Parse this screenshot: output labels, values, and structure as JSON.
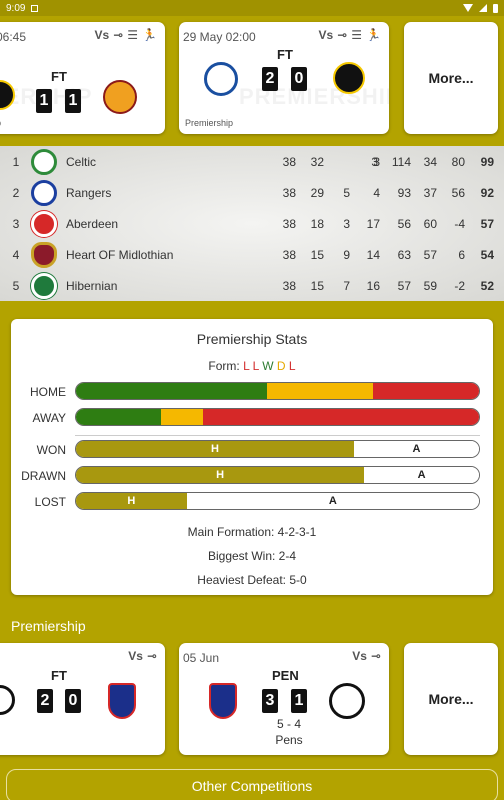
{
  "status_bar": {
    "time": "9:09"
  },
  "top_fixtures": [
    {
      "date": "06:45",
      "vs": "Vs",
      "status": "FT",
      "home_score": "1",
      "away_score": "1",
      "competition": "p",
      "watermark": "PREMIERSHIP"
    },
    {
      "date": "29 May 02:00",
      "vs": "Vs",
      "status": "FT",
      "home_score": "2",
      "away_score": "0",
      "competition": "Premiership",
      "watermark": "PREMIERSHIP"
    }
  ],
  "more_label": "More...",
  "league_table": [
    {
      "pos": "1",
      "team": "Celtic",
      "p": "38",
      "w": "32",
      "d": "3",
      "l": "3",
      "gf": "114",
      "ga": "34",
      "gd": "80",
      "pts": "99"
    },
    {
      "pos": "2",
      "team": "Rangers",
      "p": "38",
      "w": "29",
      "d": "5",
      "l": "4",
      "gf": "93",
      "ga": "37",
      "gd": "56",
      "pts": "92"
    },
    {
      "pos": "3",
      "team": "Aberdeen",
      "p": "38",
      "w": "18",
      "d": "3",
      "l": "17",
      "gf": "56",
      "ga": "60",
      "gd": "-4",
      "pts": "57"
    },
    {
      "pos": "4",
      "team": "Heart OF Midlothian",
      "p": "38",
      "w": "15",
      "d": "9",
      "l": "14",
      "gf": "63",
      "ga": "57",
      "gd": "6",
      "pts": "54"
    },
    {
      "pos": "5",
      "team": "Hibernian",
      "p": "38",
      "w": "15",
      "d": "7",
      "l": "16",
      "gf": "57",
      "ga": "59",
      "gd": "-2",
      "pts": "52"
    }
  ],
  "stats": {
    "title": "Premiership Stats",
    "form_label": "Form:",
    "form": [
      "L",
      "L",
      "W",
      "D",
      "L"
    ],
    "home_label": "HOME",
    "away_label": "AWAY",
    "home_split": {
      "win": 0.475,
      "draw": 0.263,
      "loss": 0.262
    },
    "away_split": {
      "win": 0.21,
      "draw": 0.105,
      "loss": 0.685
    },
    "won_label": "WON",
    "drawn_label": "DRAWN",
    "lost_label": "LOST",
    "won_split": {
      "home": 0.69,
      "away": 0.31
    },
    "drawn_split": {
      "home": 0.715,
      "away": 0.285
    },
    "lost_split": {
      "home": 0.275,
      "away": 0.725
    },
    "h_label": "H",
    "a_label": "A",
    "main_formation": "Main Formation: 4-2-3-1",
    "biggest_win": "Biggest Win: 2-4",
    "heaviest_defeat": "Heaviest Defeat: 5-0"
  },
  "colors": {
    "win": "#2e7d12",
    "draw": "#f5b800",
    "loss": "#d62828",
    "accent": "#b3a300"
  },
  "section_title": "Premiership",
  "bottom_fixtures": [
    {
      "date": "",
      "vs": "Vs",
      "status": "FT",
      "home_score": "2",
      "away_score": "0"
    },
    {
      "date": "05 Jun",
      "vs": "Vs",
      "status": "PEN",
      "home_score": "3",
      "away_score": "1",
      "pens_score": "5 - 4",
      "pens_label": "Pens"
    }
  ],
  "other_competitions": "Other Competitions"
}
